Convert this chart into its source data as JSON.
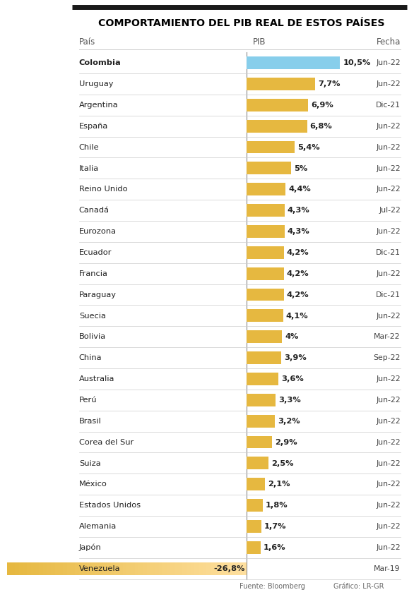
{
  "title": "COMPORTAMIENTO DEL PIB REAL DE ESTOS PAÍSES",
  "col_pais": "País",
  "col_pib": "PIB",
  "col_fecha": "Fecha",
  "countries": [
    "Colombia",
    "Uruguay",
    "Argentina",
    "España",
    "Chile",
    "Italia",
    "Reino Unido",
    "Canadá",
    "Eurozona",
    "Ecuador",
    "Francia",
    "Paraguay",
    "Suecia",
    "Bolivia",
    "China",
    "Australia",
    "Perú",
    "Brasil",
    "Corea del Sur",
    "Suiza",
    "México",
    "Estados Unidos",
    "Alemania",
    "Japón",
    "Venezuela"
  ],
  "values": [
    10.5,
    7.7,
    6.9,
    6.8,
    5.4,
    5.0,
    4.4,
    4.3,
    4.3,
    4.2,
    4.2,
    4.2,
    4.1,
    4.0,
    3.9,
    3.6,
    3.3,
    3.2,
    2.9,
    2.5,
    2.1,
    1.8,
    1.7,
    1.6,
    -26.8
  ],
  "labels": [
    "10,5%",
    "7,7%",
    "6,9%",
    "6,8%",
    "5,4%",
    "5%",
    "4,4%",
    "4,3%",
    "4,3%",
    "4,2%",
    "4,2%",
    "4,2%",
    "4,1%",
    "4%",
    "3,9%",
    "3,6%",
    "3,3%",
    "3,2%",
    "2,9%",
    "2,5%",
    "2,1%",
    "1,8%",
    "1,7%",
    "1,6%",
    "-26,8%"
  ],
  "dates": [
    "Jun-22",
    "Jun-22",
    "Dic-21",
    "Jun-22",
    "Jun-22",
    "Jun-22",
    "Jun-22",
    "Jul-22",
    "Jun-22",
    "Dic-21",
    "Jun-22",
    "Dic-21",
    "Jun-22",
    "Mar-22",
    "Sep-22",
    "Jun-22",
    "Jun-22",
    "Jun-22",
    "Jun-22",
    "Jun-22",
    "Jun-22",
    "Jun-22",
    "Jun-22",
    "Jun-22",
    "Mar-19"
  ],
  "bar_colors": [
    "#87ceeb",
    "#e6b840",
    "#e6b840",
    "#e6b840",
    "#e6b840",
    "#e6b840",
    "#e6b840",
    "#e6b840",
    "#e6b840",
    "#e6b840",
    "#e6b840",
    "#e6b840",
    "#e6b840",
    "#e6b840",
    "#e6b840",
    "#e6b840",
    "#e6b840",
    "#e6b840",
    "#e6b840",
    "#e6b840",
    "#e6b840",
    "#e6b840",
    "#e6b840",
    "#e6b840",
    "#e6b840"
  ],
  "bg_color": "#ffffff",
  "title_color": "#000000",
  "bar_height": 0.6,
  "source_text": "Fuente: Bloomberg",
  "graphic_text": "Gráfico: LR-GR",
  "top_bar_color": "#1a1a1a",
  "label_fontsize": 8.2,
  "date_fontsize": 7.8,
  "country_fontsize": 8.2
}
